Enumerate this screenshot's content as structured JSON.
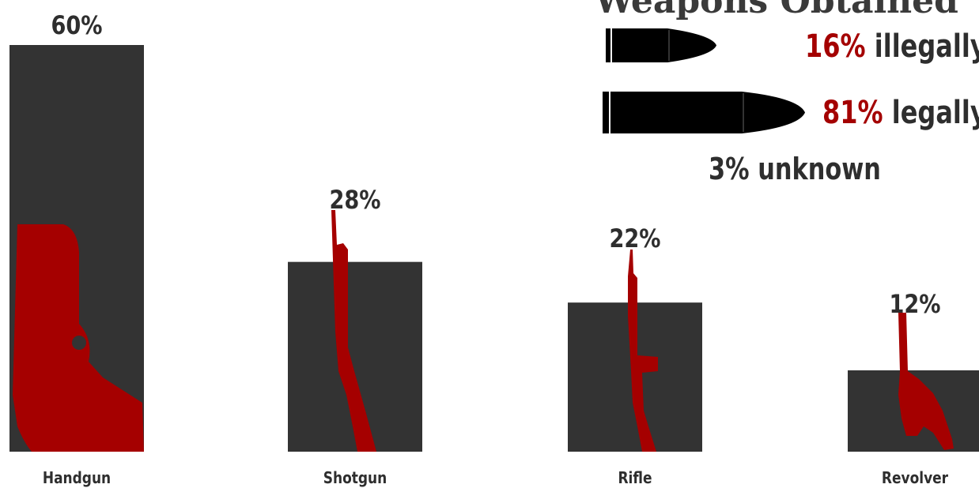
{
  "headline": "Weapons Obtained",
  "chart_data": {
    "type": "bar",
    "categories": [
      "Handgun",
      "Shotgun",
      "Rifle",
      "Revolver"
    ],
    "values": [
      60,
      28,
      22,
      12
    ],
    "value_labels": [
      "60%",
      "28%",
      "22%",
      "12%"
    ],
    "ylim": [
      0,
      60
    ],
    "grid": false,
    "legend": "none"
  },
  "acquisition": [
    {
      "pct": "16%",
      "label": "illegally"
    },
    {
      "pct": "81%",
      "label": "legally"
    }
  ],
  "unknown": "3% unknown",
  "colors": {
    "bar": "#333333",
    "silhouette": "#a50000",
    "text": "#2e2e2e",
    "accent": "#a40000"
  }
}
